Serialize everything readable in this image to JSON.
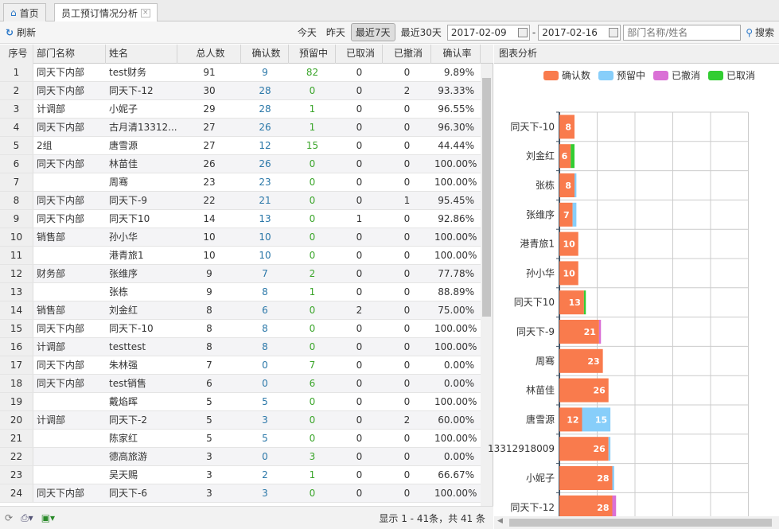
{
  "tabs": [
    {
      "label": "首页",
      "icon": "home-icon"
    },
    {
      "label": "员工预订情况分析",
      "icon": "close-icon"
    }
  ],
  "toolbar": {
    "refresh": "刷新",
    "ranges": [
      "今天",
      "昨天",
      "最近7天",
      "最近30天"
    ],
    "selected_range": "最近7天",
    "date_from": "2017-02-09",
    "date_sep": "-",
    "date_to": "2017-02-16",
    "search_placeholder": "部门名称/姓名",
    "search": "搜索"
  },
  "table": {
    "columns": [
      "序号",
      "部门名称",
      "姓名",
      "总人数",
      "确认数",
      "预留中",
      "已取消",
      "已撤消",
      "确认率"
    ],
    "rows": [
      [
        "1",
        "同天下内部",
        "test财务",
        "91",
        "9",
        "82",
        "0",
        "0",
        "9.89%"
      ],
      [
        "2",
        "同天下内部",
        "同天下-12",
        "30",
        "28",
        "0",
        "0",
        "2",
        "93.33%"
      ],
      [
        "3",
        "计调部",
        "小妮子",
        "29",
        "28",
        "1",
        "0",
        "0",
        "96.55%"
      ],
      [
        "4",
        "同天下内部",
        "古月清13312...",
        "27",
        "26",
        "1",
        "0",
        "0",
        "96.30%"
      ],
      [
        "5",
        "2组",
        "唐雪源",
        "27",
        "12",
        "15",
        "0",
        "0",
        "44.44%"
      ],
      [
        "6",
        "同天下内部",
        "林苗佳",
        "26",
        "26",
        "0",
        "0",
        "0",
        "100.00%"
      ],
      [
        "7",
        "",
        "周骞",
        "23",
        "23",
        "0",
        "0",
        "0",
        "100.00%"
      ],
      [
        "8",
        "同天下内部",
        "同天下-9",
        "22",
        "21",
        "0",
        "0",
        "1",
        "95.45%"
      ],
      [
        "9",
        "同天下内部",
        "同天下10",
        "14",
        "13",
        "0",
        "1",
        "0",
        "92.86%"
      ],
      [
        "10",
        "销售部",
        "孙小华",
        "10",
        "10",
        "0",
        "0",
        "0",
        "100.00%"
      ],
      [
        "11",
        "",
        "港青旅1",
        "10",
        "10",
        "0",
        "0",
        "0",
        "100.00%"
      ],
      [
        "12",
        "财务部",
        "张维序",
        "9",
        "7",
        "2",
        "0",
        "0",
        "77.78%"
      ],
      [
        "13",
        "",
        "张栋",
        "9",
        "8",
        "1",
        "0",
        "0",
        "88.89%"
      ],
      [
        "14",
        "销售部",
        "刘金红",
        "8",
        "6",
        "0",
        "2",
        "0",
        "75.00%"
      ],
      [
        "15",
        "同天下内部",
        "同天下-10",
        "8",
        "8",
        "0",
        "0",
        "0",
        "100.00%"
      ],
      [
        "16",
        "计调部",
        "testtest",
        "8",
        "8",
        "0",
        "0",
        "0",
        "100.00%"
      ],
      [
        "17",
        "同天下内部",
        "朱林强",
        "7",
        "0",
        "7",
        "0",
        "0",
        "0.00%"
      ],
      [
        "18",
        "同天下内部",
        "test销售",
        "6",
        "0",
        "6",
        "0",
        "0",
        "0.00%"
      ],
      [
        "19",
        "",
        "戴焰晖",
        "5",
        "5",
        "0",
        "0",
        "0",
        "100.00%"
      ],
      [
        "20",
        "计调部",
        "同天下-2",
        "5",
        "3",
        "0",
        "0",
        "2",
        "60.00%"
      ],
      [
        "21",
        "",
        "陈家红",
        "5",
        "5",
        "0",
        "0",
        "0",
        "100.00%"
      ],
      [
        "22",
        "",
        "德高旅游",
        "3",
        "0",
        "3",
        "0",
        "0",
        "0.00%"
      ],
      [
        "23",
        "",
        "吴天赐",
        "3",
        "2",
        "1",
        "0",
        "0",
        "66.67%"
      ],
      [
        "24",
        "同天下内部",
        "同天下-6",
        "3",
        "3",
        "0",
        "0",
        "0",
        "100.00%"
      ]
    ]
  },
  "footer": {
    "pagination": "显示 1 - 41条，共 41 条"
  },
  "chart_panel": {
    "title": "图表分析"
  },
  "chart_data": {
    "type": "bar",
    "orientation": "horizontal",
    "stacked": true,
    "xlim": [
      0,
      100
    ],
    "grid": true,
    "legend": "top",
    "categories": [
      "同天下-10",
      "刘金红",
      "张栋",
      "张维序",
      "港青旅1",
      "孙小华",
      "同天下10",
      "同天下-9",
      "周骞",
      "林苗佳",
      "唐雪源",
      "13312918009",
      "小妮子",
      "同天下-12"
    ],
    "series": [
      {
        "name": "确认数",
        "color": "#f97b4d",
        "values": [
          8,
          6,
          8,
          7,
          10,
          10,
          13,
          21,
          23,
          26,
          12,
          26,
          28,
          28
        ]
      },
      {
        "name": "预留中",
        "color": "#87cefa",
        "values": [
          0,
          0,
          1,
          2,
          0,
          0,
          0,
          0,
          0,
          0,
          15,
          1,
          1,
          0
        ]
      },
      {
        "name": "已撤消",
        "color": "#da70d6",
        "values": [
          0,
          0,
          0,
          0,
          0,
          0,
          0,
          1,
          0,
          0,
          0,
          0,
          0,
          2
        ]
      },
      {
        "name": "已取消",
        "color": "#32cd32",
        "values": [
          0,
          2,
          0,
          0,
          0,
          0,
          1,
          0,
          0,
          0,
          0,
          0,
          0,
          0
        ]
      }
    ]
  }
}
